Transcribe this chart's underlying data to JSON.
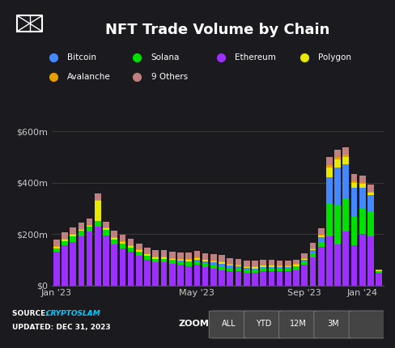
{
  "title": "NFT Trade Volume by Chain",
  "background_color": "#1a1a1f",
  "purple_line_color": "#9b30ff",
  "grid_color": "#3a3a3a",
  "text_color": "#ffffff",
  "ylabel_color": "#cccccc",
  "chains": [
    "Ethereum",
    "Solana",
    "Bitcoin",
    "Polygon",
    "Avalanche",
    "9 Others"
  ],
  "chain_colors": [
    "#9b30ff",
    "#00e000",
    "#4488ff",
    "#e8e800",
    "#e8a000",
    "#c08080"
  ],
  "source_text": "SOURCE: CRYPTOSLAM",
  "source_highlight": "CRYPTOSLAM",
  "updated_text": "UPDATED: DEC 31, 2023",
  "ylim": [
    0,
    650
  ],
  "yticks": [
    0,
    200,
    400,
    600
  ],
  "ytick_labels": [
    "$0",
    "$200m",
    "$400m",
    "$600m"
  ],
  "xtick_labels": [
    "Jan '23",
    "May '23",
    "Sep '23",
    "Jan '24"
  ],
  "months": 13,
  "data": {
    "Ethereum": [
      130,
      155,
      170,
      190,
      210,
      230,
      195,
      160,
      145,
      130,
      115,
      100,
      90,
      90,
      85,
      80,
      75,
      80,
      70,
      65,
      60,
      55,
      55,
      50,
      50,
      55,
      55,
      55,
      55,
      60,
      80,
      110,
      150,
      190,
      160,
      210,
      155,
      200,
      190,
      50
    ],
    "Solana": [
      15,
      18,
      22,
      22,
      18,
      20,
      20,
      18,
      18,
      18,
      16,
      15,
      14,
      14,
      13,
      13,
      14,
      13,
      13,
      12,
      12,
      11,
      11,
      11,
      11,
      11,
      11,
      10,
      10,
      10,
      10,
      15,
      20,
      130,
      150,
      130,
      115,
      100,
      100,
      5
    ],
    "Bitcoin": [
      0,
      0,
      0,
      0,
      0,
      0,
      0,
      0,
      0,
      0,
      0,
      0,
      0,
      0,
      0,
      2,
      5,
      8,
      10,
      12,
      12,
      10,
      8,
      6,
      5,
      5,
      5,
      5,
      5,
      5,
      8,
      12,
      18,
      100,
      150,
      130,
      110,
      80,
      60,
      2
    ],
    "Polygon": [
      5,
      5,
      5,
      5,
      5,
      80,
      6,
      6,
      5,
      5,
      5,
      5,
      5,
      5,
      5,
      5,
      5,
      5,
      5,
      5,
      5,
      5,
      5,
      5,
      5,
      5,
      5,
      5,
      5,
      5,
      5,
      5,
      5,
      40,
      30,
      30,
      20,
      15,
      10,
      1
    ],
    "Avalanche": [
      3,
      3,
      3,
      3,
      3,
      3,
      3,
      3,
      3,
      3,
      3,
      3,
      3,
      3,
      3,
      3,
      3,
      3,
      3,
      3,
      3,
      3,
      3,
      3,
      3,
      3,
      3,
      3,
      3,
      3,
      3,
      3,
      3,
      8,
      8,
      8,
      6,
      5,
      5,
      1
    ],
    "9 Others": [
      25,
      25,
      25,
      25,
      25,
      25,
      25,
      25,
      25,
      25,
      25,
      25,
      25,
      25,
      25,
      25,
      25,
      25,
      25,
      25,
      25,
      22,
      22,
      22,
      22,
      20,
      20,
      18,
      18,
      18,
      18,
      20,
      25,
      30,
      30,
      30,
      28,
      28,
      28,
      3
    ]
  },
  "zoom_buttons": [
    "ALL",
    "YTD",
    "12M",
    "3M",
    ""
  ],
  "num_bars": 40
}
